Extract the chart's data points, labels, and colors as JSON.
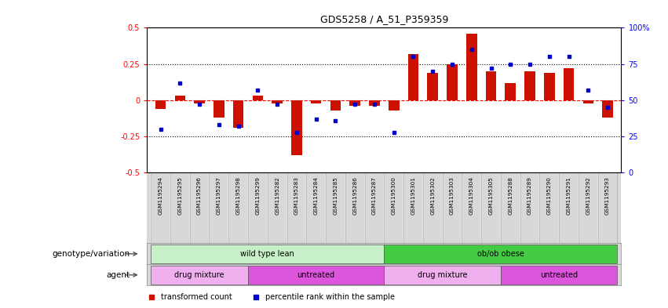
{
  "title": "GDS5258 / A_51_P359359",
  "samples": [
    "GSM1195294",
    "GSM1195295",
    "GSM1195296",
    "GSM1195297",
    "GSM1195298",
    "GSM1195299",
    "GSM1195282",
    "GSM1195283",
    "GSM1195284",
    "GSM1195285",
    "GSM1195286",
    "GSM1195287",
    "GSM1195300",
    "GSM1195301",
    "GSM1195302",
    "GSM1195303",
    "GSM1195304",
    "GSM1195305",
    "GSM1195288",
    "GSM1195289",
    "GSM1195290",
    "GSM1195291",
    "GSM1195292",
    "GSM1195293"
  ],
  "red_bars": [
    -0.06,
    0.03,
    -0.02,
    -0.12,
    -0.19,
    0.03,
    -0.02,
    -0.38,
    -0.02,
    -0.07,
    -0.04,
    -0.04,
    -0.07,
    0.32,
    0.19,
    0.25,
    0.46,
    0.2,
    0.12,
    0.2,
    0.19,
    0.22,
    -0.02,
    -0.12
  ],
  "blue_dots_pct": [
    30,
    62,
    47,
    33,
    32,
    57,
    47,
    28,
    37,
    36,
    47,
    47,
    28,
    80,
    70,
    75,
    85,
    72,
    75,
    75,
    80,
    80,
    57,
    45
  ],
  "ylim_left": [
    -0.5,
    0.5
  ],
  "ylim_right": [
    0,
    100
  ],
  "yticks_left": [
    -0.5,
    -0.25,
    0.0,
    0.25,
    0.5
  ],
  "ytick_labels_left": [
    "-0.5",
    "-0.25",
    "0",
    "0.25",
    "0.5"
  ],
  "yticks_right": [
    0,
    25,
    50,
    75,
    100
  ],
  "ytick_labels_right": [
    "0",
    "25",
    "50",
    "75",
    "100%"
  ],
  "hlines_black": [
    0.25,
    -0.25
  ],
  "hline_red": 0.0,
  "groups": [
    {
      "row_label": "genotype/variation",
      "entries": [
        {
          "text": "wild type lean",
          "start": 0,
          "end": 11,
          "color": "#c8f0c8"
        },
        {
          "text": "ob/ob obese",
          "start": 12,
          "end": 23,
          "color": "#44cc44"
        }
      ]
    },
    {
      "row_label": "agent",
      "entries": [
        {
          "text": "drug mixture",
          "start": 0,
          "end": 4,
          "color": "#f0b0f0"
        },
        {
          "text": "untreated",
          "start": 5,
          "end": 11,
          "color": "#dd55dd"
        },
        {
          "text": "drug mixture",
          "start": 12,
          "end": 17,
          "color": "#f0b0f0"
        },
        {
          "text": "untreated",
          "start": 18,
          "end": 23,
          "color": "#dd55dd"
        }
      ]
    }
  ],
  "legend": [
    {
      "label": "transformed count",
      "color": "#cc1100"
    },
    {
      "label": "percentile rank within the sample",
      "color": "#0000cc"
    }
  ],
  "bar_color": "#cc1100",
  "dot_color": "#0000cc",
  "xtick_bg": "#d8d8d8"
}
